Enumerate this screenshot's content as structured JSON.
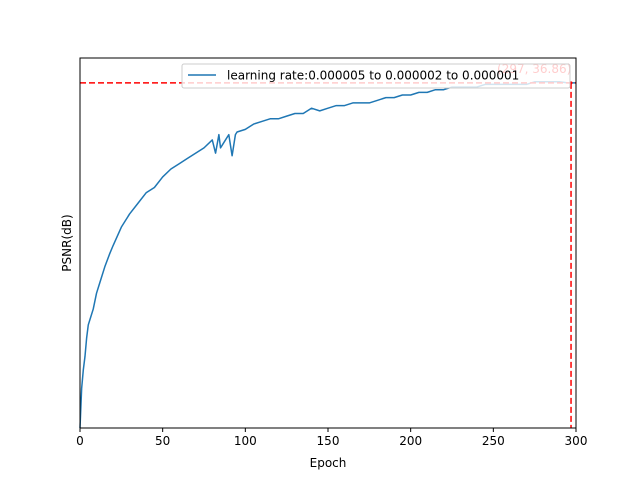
{
  "chart_data": {
    "type": "line",
    "xlabel": "Epoch",
    "ylabel": "PSNR(dB)",
    "xlim": [
      0,
      300
    ],
    "ylim": [
      23.8,
      37.8
    ],
    "x_ticks": [
      0,
      50,
      100,
      150,
      200,
      250,
      300
    ],
    "x_tick_labels": [
      "0",
      "50",
      "100",
      "150",
      "200",
      "250",
      "300"
    ],
    "y_ticks_labeled": false,
    "grid": false,
    "legend_position": "top-right",
    "colors": {
      "series": "#1f77b4",
      "annotation": "#ff0000"
    },
    "series": [
      {
        "name": "learning rate:0.000005 to 0.000002 to 0.000001",
        "x": [
          0,
          1,
          2,
          3,
          4,
          5,
          6,
          8,
          10,
          12,
          15,
          18,
          20,
          25,
          30,
          35,
          40,
          45,
          50,
          55,
          60,
          65,
          70,
          75,
          80,
          82,
          84,
          85,
          87,
          90,
          92,
          94,
          95,
          100,
          105,
          110,
          115,
          120,
          125,
          130,
          135,
          140,
          145,
          150,
          155,
          160,
          165,
          170,
          175,
          180,
          185,
          190,
          195,
          200,
          205,
          210,
          215,
          220,
          225,
          230,
          235,
          240,
          245,
          250,
          255,
          260,
          265,
          270,
          275,
          280,
          285,
          290,
          295,
          297,
          300
        ],
        "values": [
          23.8,
          25.3,
          26.0,
          26.5,
          27.2,
          27.7,
          27.9,
          28.3,
          28.9,
          29.3,
          29.9,
          30.4,
          30.7,
          31.4,
          31.9,
          32.3,
          32.7,
          32.9,
          33.3,
          33.6,
          33.8,
          34.0,
          34.2,
          34.4,
          34.7,
          34.2,
          34.9,
          34.4,
          34.6,
          34.9,
          34.1,
          34.9,
          35.0,
          35.1,
          35.3,
          35.4,
          35.5,
          35.5,
          35.6,
          35.7,
          35.7,
          35.9,
          35.8,
          35.9,
          36.0,
          36.0,
          36.1,
          36.1,
          36.1,
          36.2,
          36.3,
          36.3,
          36.4,
          36.4,
          36.5,
          36.5,
          36.6,
          36.6,
          36.7,
          36.7,
          36.7,
          36.7,
          36.8,
          36.8,
          36.8,
          36.8,
          36.8,
          36.8,
          36.9,
          36.9,
          36.9,
          36.9,
          36.86,
          36.86,
          36.86
        ]
      }
    ],
    "annotation": {
      "x": 297,
      "y": 36.86,
      "text": "(297, 36.86)"
    }
  }
}
